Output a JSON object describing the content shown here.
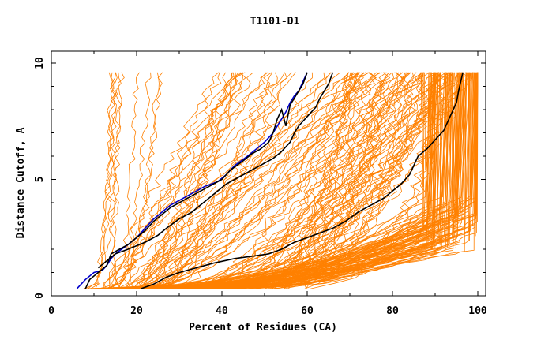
{
  "chart_data": {
    "type": "line",
    "title": "T1101-D1",
    "xlabel": "Percent of Residues (CA)",
    "ylabel": "Distance Cutoff, A",
    "xlim": [
      0,
      100
    ],
    "ylim": [
      0,
      10
    ],
    "x_ticks": [
      0,
      20,
      40,
      60,
      80,
      100
    ],
    "y_ticks": [
      0,
      5,
      10
    ],
    "colors": {
      "models": "#ff8000",
      "highlight_blue": "#0000cc",
      "highlight_black": "#000000",
      "axis": "#000000"
    },
    "series": [
      {
        "name": "blue-model",
        "color": "#0000cc",
        "points": [
          [
            6,
            0.3
          ],
          [
            8,
            0.7
          ],
          [
            10,
            1.0
          ],
          [
            12,
            1.1
          ],
          [
            13,
            1.3
          ],
          [
            14,
            1.6
          ],
          [
            15,
            1.8
          ],
          [
            18,
            2.2
          ],
          [
            20,
            2.5
          ],
          [
            22,
            2.9
          ],
          [
            24,
            3.3
          ],
          [
            26,
            3.6
          ],
          [
            28,
            3.9
          ],
          [
            30,
            4.1
          ],
          [
            33,
            4.4
          ],
          [
            36,
            4.7
          ],
          [
            39,
            4.9
          ],
          [
            41,
            5.2
          ],
          [
            43,
            5.6
          ],
          [
            46,
            6.0
          ],
          [
            48,
            6.3
          ],
          [
            50,
            6.6
          ],
          [
            52,
            7.0
          ],
          [
            53,
            7.3
          ],
          [
            54,
            7.6
          ],
          [
            55,
            7.9
          ],
          [
            56,
            8.3
          ],
          [
            57,
            8.6
          ],
          [
            58,
            8.8
          ],
          [
            59,
            9.2
          ],
          [
            60,
            9.6
          ]
        ]
      },
      {
        "name": "black-model-1",
        "color": "#000000",
        "points": [
          [
            8,
            0.3
          ],
          [
            9,
            0.7
          ],
          [
            11,
            1.0
          ],
          [
            13,
            1.3
          ],
          [
            14,
            1.8
          ],
          [
            16,
            2.0
          ],
          [
            18,
            2.2
          ],
          [
            20,
            2.5
          ],
          [
            22,
            2.8
          ],
          [
            24,
            3.2
          ],
          [
            26,
            3.5
          ],
          [
            28,
            3.8
          ],
          [
            30,
            4.0
          ],
          [
            33,
            4.3
          ],
          [
            36,
            4.6
          ],
          [
            38,
            4.8
          ],
          [
            40,
            5.0
          ],
          [
            42,
            5.4
          ],
          [
            45,
            5.8
          ],
          [
            47,
            6.1
          ],
          [
            49,
            6.3
          ],
          [
            51,
            6.6
          ],
          [
            52,
            7.0
          ],
          [
            53,
            7.6
          ],
          [
            54,
            8.0
          ],
          [
            55,
            7.3
          ],
          [
            56,
            8.2
          ],
          [
            57,
            8.5
          ],
          [
            58,
            8.8
          ],
          [
            59,
            9.1
          ],
          [
            60,
            9.6
          ]
        ]
      },
      {
        "name": "black-model-2",
        "color": "#000000",
        "points": [
          [
            11,
            1.2
          ],
          [
            13,
            1.5
          ],
          [
            15,
            1.8
          ],
          [
            18,
            2.0
          ],
          [
            22,
            2.3
          ],
          [
            25,
            2.6
          ],
          [
            27,
            2.9
          ],
          [
            30,
            3.3
          ],
          [
            33,
            3.6
          ],
          [
            35,
            3.9
          ],
          [
            37,
            4.2
          ],
          [
            39,
            4.5
          ],
          [
            41,
            4.8
          ],
          [
            43,
            5.0
          ],
          [
            46,
            5.3
          ],
          [
            49,
            5.6
          ],
          [
            52,
            5.9
          ],
          [
            54,
            6.2
          ],
          [
            56,
            6.6
          ],
          [
            57,
            7.0
          ],
          [
            58,
            7.3
          ],
          [
            60,
            7.7
          ],
          [
            62,
            8.1
          ],
          [
            63,
            8.5
          ],
          [
            64,
            8.8
          ],
          [
            65,
            9.1
          ],
          [
            66,
            9.6
          ]
        ]
      },
      {
        "name": "black-model-3",
        "color": "#000000",
        "points": [
          [
            21,
            0.3
          ],
          [
            24,
            0.5
          ],
          [
            27,
            0.8
          ],
          [
            30,
            1.0
          ],
          [
            34,
            1.2
          ],
          [
            38,
            1.4
          ],
          [
            43,
            1.6
          ],
          [
            47,
            1.7
          ],
          [
            51,
            1.8
          ],
          [
            54,
            2.0
          ],
          [
            57,
            2.3
          ],
          [
            60,
            2.5
          ],
          [
            63,
            2.7
          ],
          [
            66,
            2.9
          ],
          [
            69,
            3.2
          ],
          [
            72,
            3.6
          ],
          [
            75,
            3.9
          ],
          [
            78,
            4.2
          ],
          [
            80,
            4.5
          ],
          [
            82,
            4.8
          ],
          [
            84,
            5.2
          ],
          [
            85,
            5.6
          ],
          [
            86,
            6.0
          ],
          [
            88,
            6.3
          ],
          [
            90,
            6.7
          ],
          [
            92,
            7.1
          ],
          [
            93,
            7.5
          ],
          [
            94,
            7.9
          ],
          [
            95,
            8.3
          ],
          [
            95.5,
            8.8
          ],
          [
            96,
            9.2
          ],
          [
            96.5,
            9.6
          ]
        ]
      }
    ]
  }
}
